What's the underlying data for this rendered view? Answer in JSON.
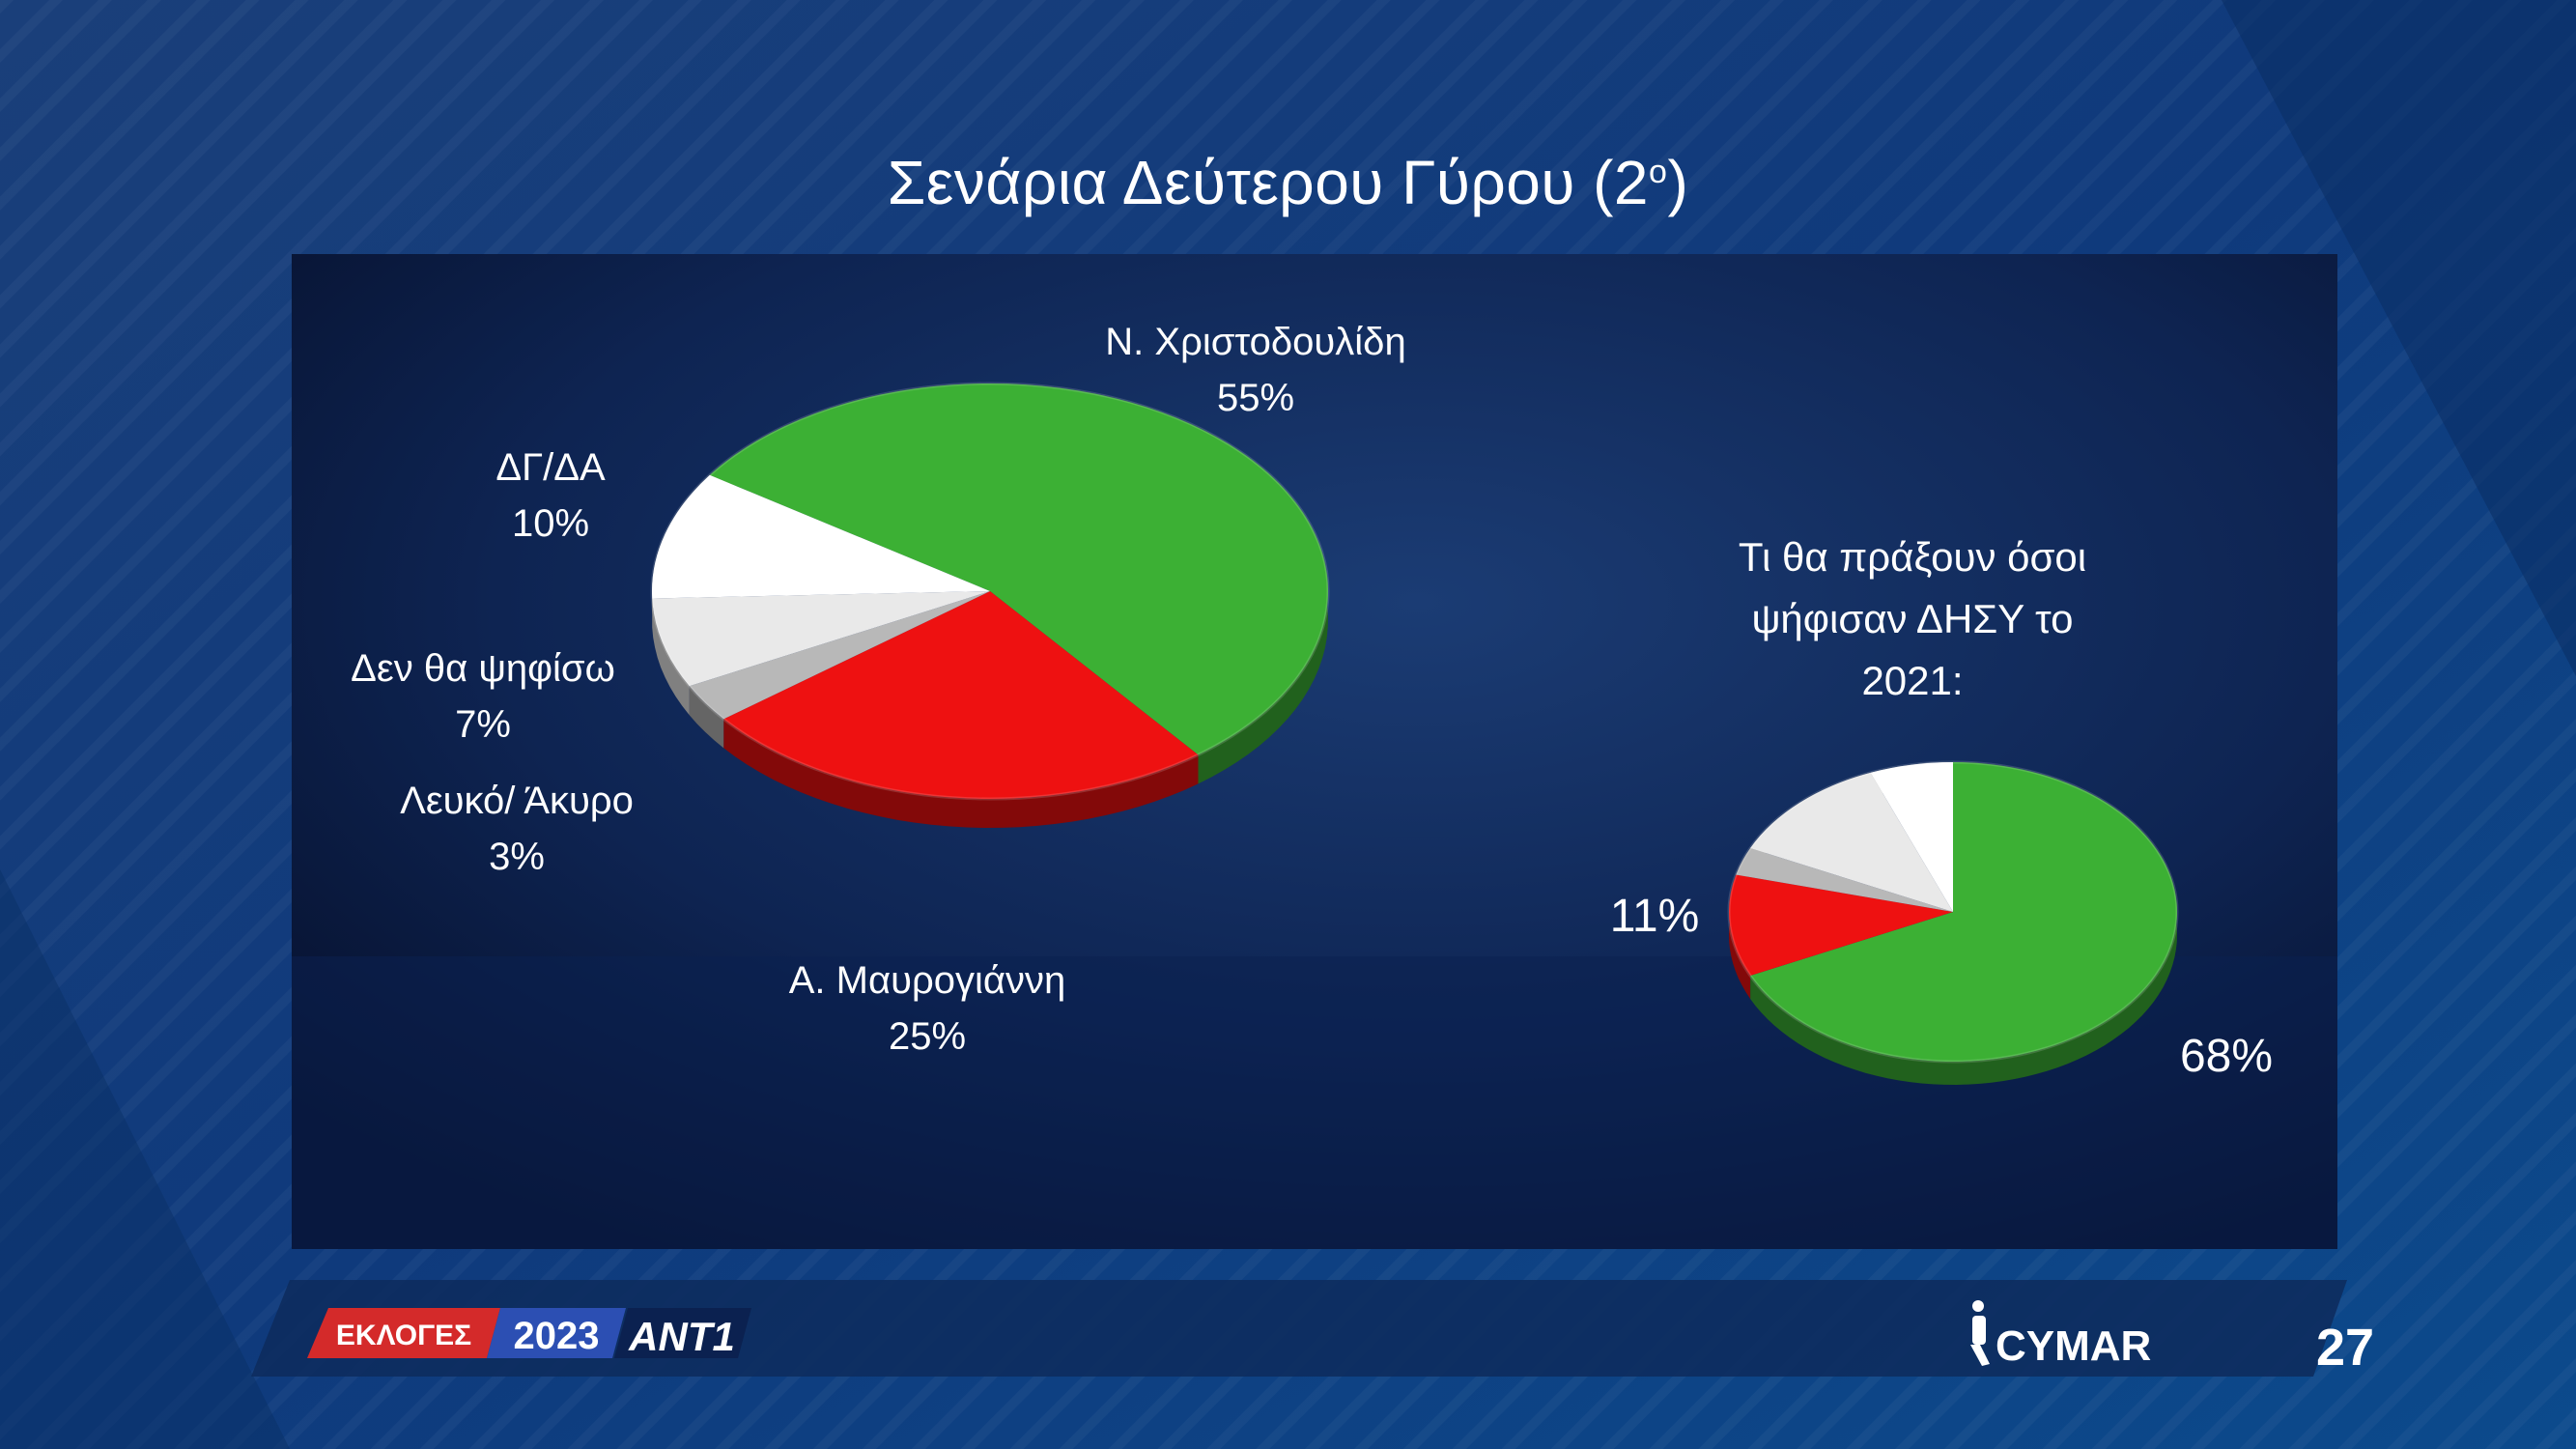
{
  "slide": {
    "title_main": "Σενάρια Δεύτερου Γύρου (2",
    "title_sup": "ο",
    "title_end": ")",
    "page_number": "27",
    "footer": {
      "elections_label": "ΕΚΛΟΓΕΣ",
      "year": "2023",
      "channel": "ANT1",
      "pollster": "CYMAR"
    },
    "colors": {
      "green": "#3cb034",
      "red": "#ee1111",
      "white": "#f4f4f4",
      "gray": "#b8b8b8",
      "background": "#0c3a78",
      "panel": "#0b1e45"
    }
  },
  "chart_data": [
    {
      "type": "pie",
      "title": "",
      "slices": [
        {
          "name": "Ν. Χριστοδουλίδη",
          "value": 55,
          "label": "55%",
          "color": "#3cb034"
        },
        {
          "name": "Α. Μαυρογιάννη",
          "value": 25,
          "label": "25%",
          "color": "#ee1111"
        },
        {
          "name": "Λευκό/ Άκυρο",
          "value": 3,
          "label": "3%",
          "color": "#b8b8b8"
        },
        {
          "name": "Δεν θα ψηφίσω",
          "value": 7,
          "label": "7%",
          "color": "#e9e9e9"
        },
        {
          "name": "ΔΓ/ΔΑ",
          "value": 10,
          "label": "10%",
          "color": "#ffffff"
        }
      ]
    },
    {
      "type": "pie",
      "title": "Τι θα πράξουν όσοι ψήφισαν ΔΗΣΥ το 2021:",
      "title_lines": [
        "Τι θα πράξουν όσοι",
        "ψήφισαν ΔΗΣΥ το",
        "2021:"
      ],
      "slices": [
        {
          "value": 68,
          "label": "68%",
          "color": "#3cb034"
        },
        {
          "value": 11,
          "label": "11%",
          "color": "#ee1111"
        },
        {
          "value": 3,
          "label": "",
          "color": "#b8b8b8"
        },
        {
          "value": 12,
          "label": "",
          "color": "#e9e9e9"
        },
        {
          "value": 6,
          "label": "",
          "color": "#ffffff"
        }
      ]
    }
  ]
}
